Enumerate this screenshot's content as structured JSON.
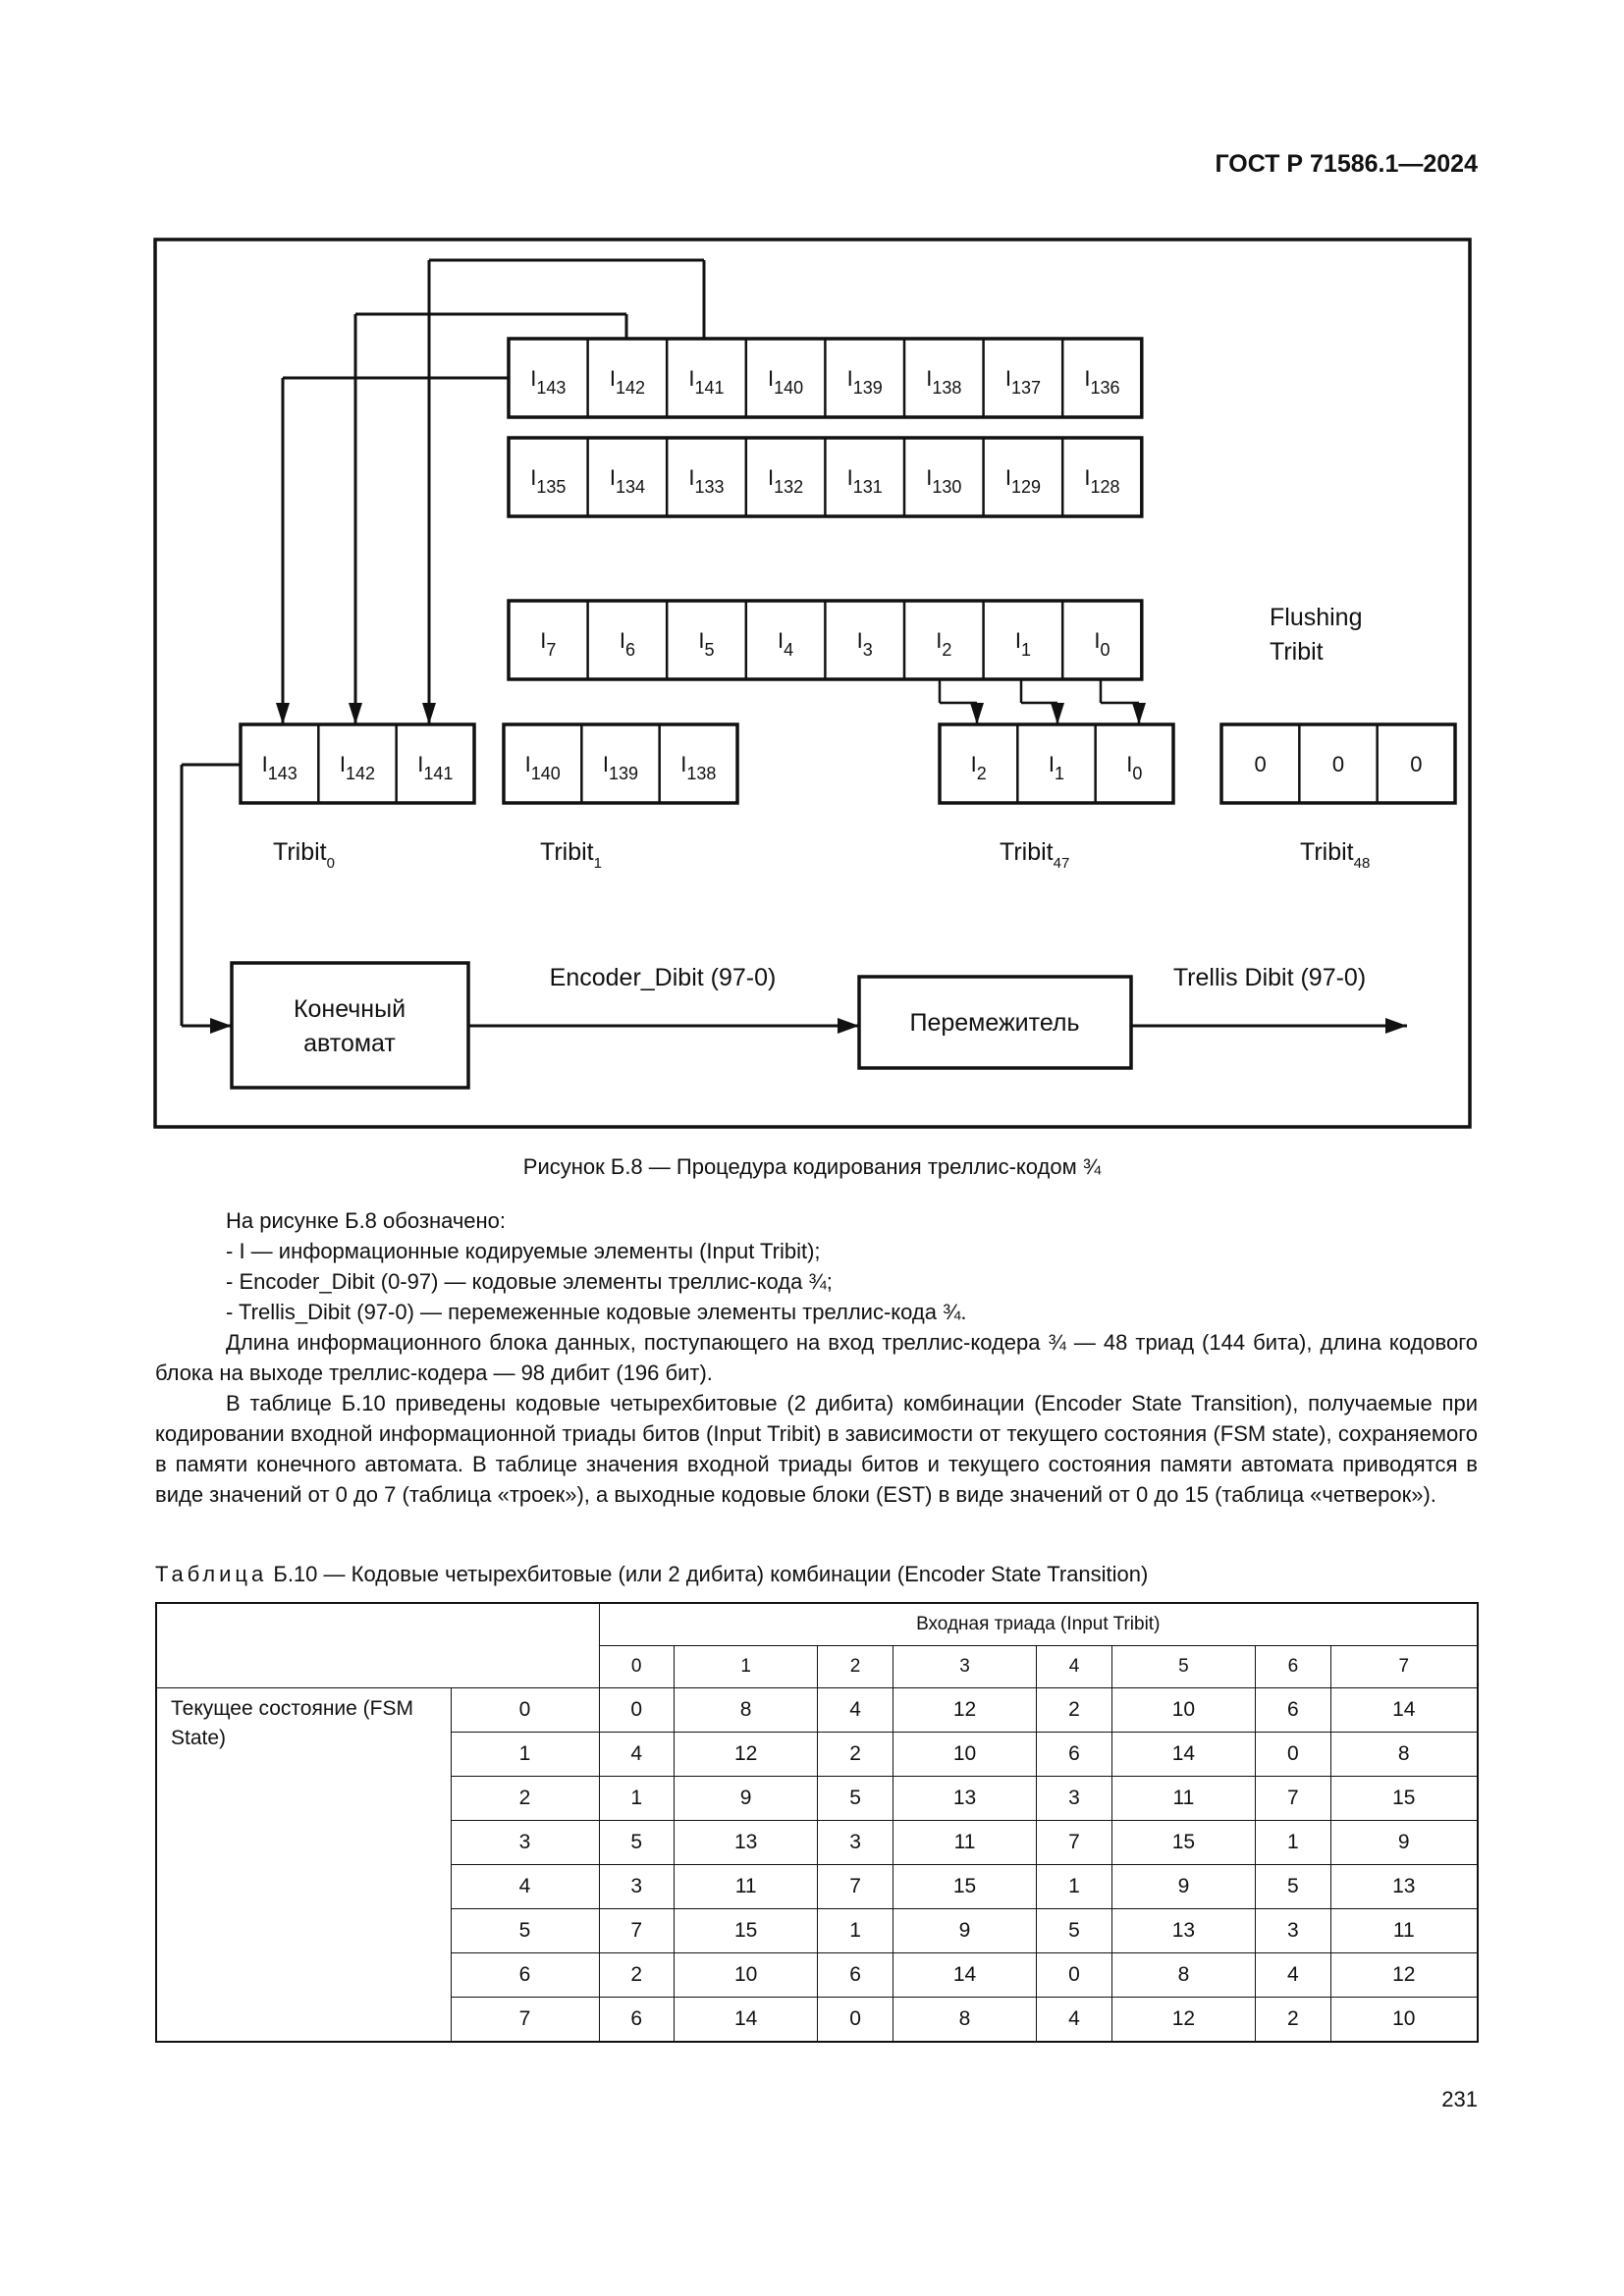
{
  "header": {
    "doc_id": "ГОСТ Р 71586.1—2024"
  },
  "figure": {
    "prefix": "I",
    "row1": [
      "143",
      "142",
      "141",
      "140",
      "139",
      "138",
      "137",
      "136"
    ],
    "row2": [
      "135",
      "134",
      "133",
      "132",
      "131",
      "130",
      "129",
      "128"
    ],
    "row3": [
      "7",
      "6",
      "5",
      "4",
      "3",
      "2",
      "1",
      "0"
    ],
    "tribits": [
      {
        "label": "Tribit",
        "sub": "0",
        "cells": [
          {
            "p": "I",
            "s": "143"
          },
          {
            "p": "I",
            "s": "142"
          },
          {
            "p": "I",
            "s": "141"
          }
        ]
      },
      {
        "label": "Tribit",
        "sub": "1",
        "cells": [
          {
            "p": "I",
            "s": "140"
          },
          {
            "p": "I",
            "s": "139"
          },
          {
            "p": "I",
            "s": "138"
          }
        ]
      },
      {
        "label": "Tribit",
        "sub": "47",
        "cells": [
          {
            "p": "I",
            "s": "2"
          },
          {
            "p": "I",
            "s": "1"
          },
          {
            "p": "I",
            "s": "0"
          }
        ]
      },
      {
        "label": "Tribit",
        "sub": "48",
        "cells": [
          {
            "p": "0",
            "s": ""
          },
          {
            "p": "0",
            "s": ""
          },
          {
            "p": "0",
            "s": ""
          }
        ]
      }
    ],
    "flushing_label": [
      "Flushing",
      "Tribit"
    ],
    "fsm_label": [
      "Конечный",
      "автомат"
    ],
    "interleaver_label": "Перемежитель",
    "encoder_dibit_label": "Encoder_Dibit (97-0)",
    "trellis_dibit_label": "Trellis Dibit (97-0)",
    "caption": "Рисунок Б.8 — Процедура кодирования треллис-кодом ¾"
  },
  "body": {
    "intro": "На рисунке Б.8 обозначено:",
    "items": [
      "- I — информационные кодируемые элементы (Input Tribit);",
      "- Encoder_Dibit (0-97) — кодовые элементы треллис-кода ¾;",
      "- Trellis_Dibit (97-0) — перемеженные кодовые элементы треллис-кода ¾."
    ],
    "para1": "Длина информационного блока данных, поступающего на вход треллис-кодера ¾ — 48 триад (144 бита), длина кодового блока на выходе треллис-кодера — 98 дибит (196 бит).",
    "para2": "В таблице Б.10 приведены кодовые четырехбитовые (2 дибита) комбинации (Encoder State Transition), получаемые при кодировании входной информационной триады битов (Input Tribit) в зависимости от текущего состояния (FSM state), сохраняемого в памяти конечного автомата. В таблице значения входной триады битов и текущего состояния памяти автомата приводятся в виде значений от 0 до 7 (таблица «троек»), а выходные кодовые блоки (EST) в виде значений от 0 до 15 (таблица «четверок»)."
  },
  "table": {
    "caption_prefix": "Таблица",
    "caption": " Б.10 — Кодовые четырехбитовые (или 2 дибита) комбинации (Encoder State Transition)",
    "input_header": "Входная триада (Input Tribit)",
    "input_values": [
      "0",
      "1",
      "2",
      "3",
      "4",
      "5",
      "6",
      "7"
    ],
    "state_header": "Текущее состояние (FSM State)",
    "rows": [
      {
        "state": "0",
        "values": [
          "0",
          "8",
          "4",
          "12",
          "2",
          "10",
          "6",
          "14"
        ]
      },
      {
        "state": "1",
        "values": [
          "4",
          "12",
          "2",
          "10",
          "6",
          "14",
          "0",
          "8"
        ]
      },
      {
        "state": "2",
        "values": [
          "1",
          "9",
          "5",
          "13",
          "3",
          "11",
          "7",
          "15"
        ]
      },
      {
        "state": "3",
        "values": [
          "5",
          "13",
          "3",
          "11",
          "7",
          "15",
          "1",
          "9"
        ]
      },
      {
        "state": "4",
        "values": [
          "3",
          "11",
          "7",
          "15",
          "1",
          "9",
          "5",
          "13"
        ]
      },
      {
        "state": "5",
        "values": [
          "7",
          "15",
          "1",
          "9",
          "5",
          "13",
          "3",
          "11"
        ]
      },
      {
        "state": "6",
        "values": [
          "2",
          "10",
          "6",
          "14",
          "0",
          "8",
          "4",
          "12"
        ]
      },
      {
        "state": "7",
        "values": [
          "6",
          "14",
          "0",
          "8",
          "4",
          "12",
          "2",
          "10"
        ]
      }
    ]
  },
  "footer": {
    "page_number": "231"
  }
}
